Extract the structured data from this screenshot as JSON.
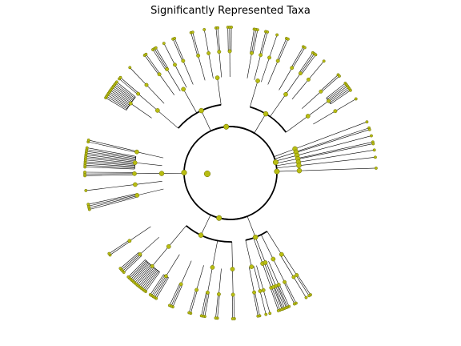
{
  "chart_data": {
    "type": "radial-tree",
    "title": "Significantly Represented Taxa",
    "xlabel": "",
    "ylabel": "",
    "grid": false,
    "legend": "none",
    "node_color": "#b8bd12",
    "node_edge_color": "#6b6e00",
    "branch_color": "#000000",
    "tree": {
      "children": [
        {
          "span": [
            0.92,
            2.72
          ],
          "children": [
            {
              "span": [
                0.99,
                1.41
              ],
              "children": [
                {
                  "span": [
                    1.13,
                    1.33
                  ],
                  "children": [
                    {
                      "leaves": 2
                    },
                    {
                      "leaves": 2
                    },
                    {
                      "leaves": 1
                    }
                  ]
                },
                {
                  "span": [
                    1.3,
                    1.4
                  ],
                  "children": [
                    {
                      "leaves": 1
                    },
                    {
                      "leaves": 2
                    }
                  ]
                },
                {
                  "span": [
                    1.18,
                    1.22
                  ],
                  "children": [
                    {
                      "leaves": 3
                    },
                    {
                      "leaves": 1
                    }
                  ]
                },
                {
                  "span": [
                    1.08,
                    1.14
                  ],
                  "children": [
                    {
                      "leaves": 2
                    }
                  ]
                },
                {
                  "span": [
                    0.98,
                    1.04
                  ],
                  "children": [
                    {
                      "leaves": 2
                    },
                    {
                      "leaves": 1
                    }
                  ]
                }
              ]
            },
            {
              "span": [
                1.45,
                2.58
              ],
              "children": [
                {
                  "span": [
                    1.92,
                    2.62
                  ],
                  "children": [
                    {
                      "leaves": 3
                    },
                    {
                      "leaves": 5
                    },
                    {
                      "leaves": 14
                    },
                    {
                      "leaves": 4
                    },
                    {
                      "leaves": 2
                    }
                  ]
                },
                {
                  "span": [
                    1.62,
                    1.9
                  ],
                  "children": [
                    {
                      "leaves": 2
                    },
                    {
                      "leaves": 3
                    },
                    {
                      "leaves": 2
                    }
                  ]
                },
                {
                  "span": [
                    1.5,
                    1.6
                  ],
                  "children": [
                    {
                      "leaves": 2
                    }
                  ]
                }
              ]
            }
          ]
        },
        {
          "span": [
            2.95,
            3.35
          ],
          "children": [
            {
              "span": [
                2.85,
                3.42
              ],
              "children": [
                {
                  "leaves": 4
                },
                {
                  "leaves": 1
                },
                {
                  "leaves": 3
                },
                {
                  "leaves": 12
                },
                {
                  "leaves": 2
                }
              ]
            }
          ]
        },
        {
          "span": [
            3.62,
            5.62
          ],
          "children": [
            {
              "span": [
                3.85,
                4.7
              ],
              "children": [
                {
                  "span": [
                    3.7,
                    4.0
                  ],
                  "children": [
                    {
                      "leaves": 12
                    },
                    {
                      "leaves": 2
                    },
                    {
                      "leaves": 1
                    }
                  ]
                },
                {
                  "span": [
                    4.05,
                    4.35
                  ],
                  "children": [
                    {
                      "leaves": 2
                    },
                    {
                      "leaves": 3
                    },
                    {
                      "leaves": 1
                    },
                    {
                      "leaves": 2
                    }
                  ]
                },
                {
                  "span": [
                    4.4,
                    4.75
                  ],
                  "children": [
                    {
                      "leaves": 2
                    },
                    {
                      "leaves": 1
                    },
                    {
                      "leaves": 2
                    },
                    {
                      "leaves": 3
                    }
                  ]
                }
              ]
            },
            {
              "span": [
                4.8,
                5.7
              ],
              "children": [
                {
                  "span": [
                    4.85,
                    5.15
                  ],
                  "children": [
                    {
                      "leaves": 3
                    },
                    {
                      "leaves": 2
                    },
                    {
                      "leaves": 1
                    },
                    {
                      "leaves": 2
                    }
                  ]
                },
                {
                  "span": [
                    5.2,
                    5.45
                  ],
                  "children": [
                    {
                      "leaves": 2
                    },
                    {
                      "leaves": 3
                    },
                    {
                      "leaves": 1
                    }
                  ]
                },
                {
                  "span": [
                    5.5,
                    5.8
                  ],
                  "children": [
                    {
                      "leaves": 2
                    },
                    {
                      "leaves": 6
                    },
                    {
                      "leaves": 1
                    }
                  ]
                }
              ]
            }
          ]
        },
        {
          "span": [
            5.9,
            6.2
          ],
          "children": [
            {
              "leaves": 1
            },
            {
              "leaves": 2
            },
            {
              "leaves": 1
            },
            {
              "leaves": 2
            },
            {
              "leaves": 1
            },
            {
              "leaves": 1
            }
          ]
        },
        {
          "span": [
            6.22,
            6.28
          ],
          "children": [
            {
              "leaves": 1
            }
          ]
        }
      ]
    }
  }
}
